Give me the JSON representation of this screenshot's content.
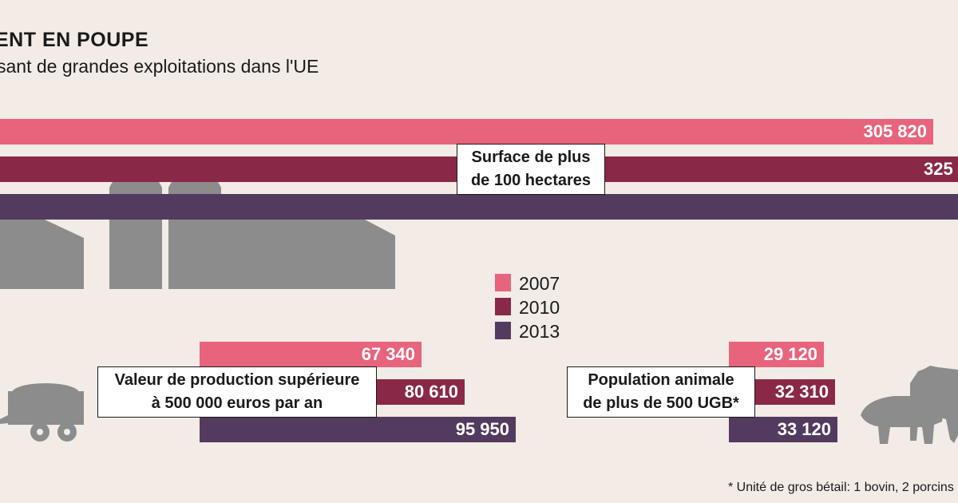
{
  "title": "ENT EN POUPE",
  "subtitle": "sant de grandes exploitations dans l'UE",
  "footnote": "* Unité de gros bétail: 1 bovin, 2 porcins",
  "colors": {
    "2007": "#e8637c",
    "2010": "#8a2848",
    "2013": "#523b5e",
    "illustration": "#8c8c8c"
  },
  "chart_data": {
    "type": "bar",
    "orientation": "horizontal",
    "legend": [
      "2007",
      "2010",
      "2013"
    ],
    "legend_position": "center",
    "groups": [
      {
        "label_lines": [
          "Surface de plus",
          "de 100 hectares"
        ],
        "values": [
          305820,
          325,
          null
        ],
        "value_labels": [
          "305 820",
          "325",
          ""
        ]
      },
      {
        "label_lines": [
          "Valeur de production supérieure",
          "à 500 000 euros par an"
        ],
        "values": [
          67340,
          80610,
          95950
        ],
        "value_labels": [
          "67 340",
          "80 610",
          "95 950"
        ]
      },
      {
        "label_lines": [
          "Population animale",
          "de plus de 500 UGB*"
        ],
        "values": [
          29120,
          32310,
          33120
        ],
        "value_labels": [
          "29 120",
          "32 310",
          "33 120"
        ]
      }
    ]
  }
}
